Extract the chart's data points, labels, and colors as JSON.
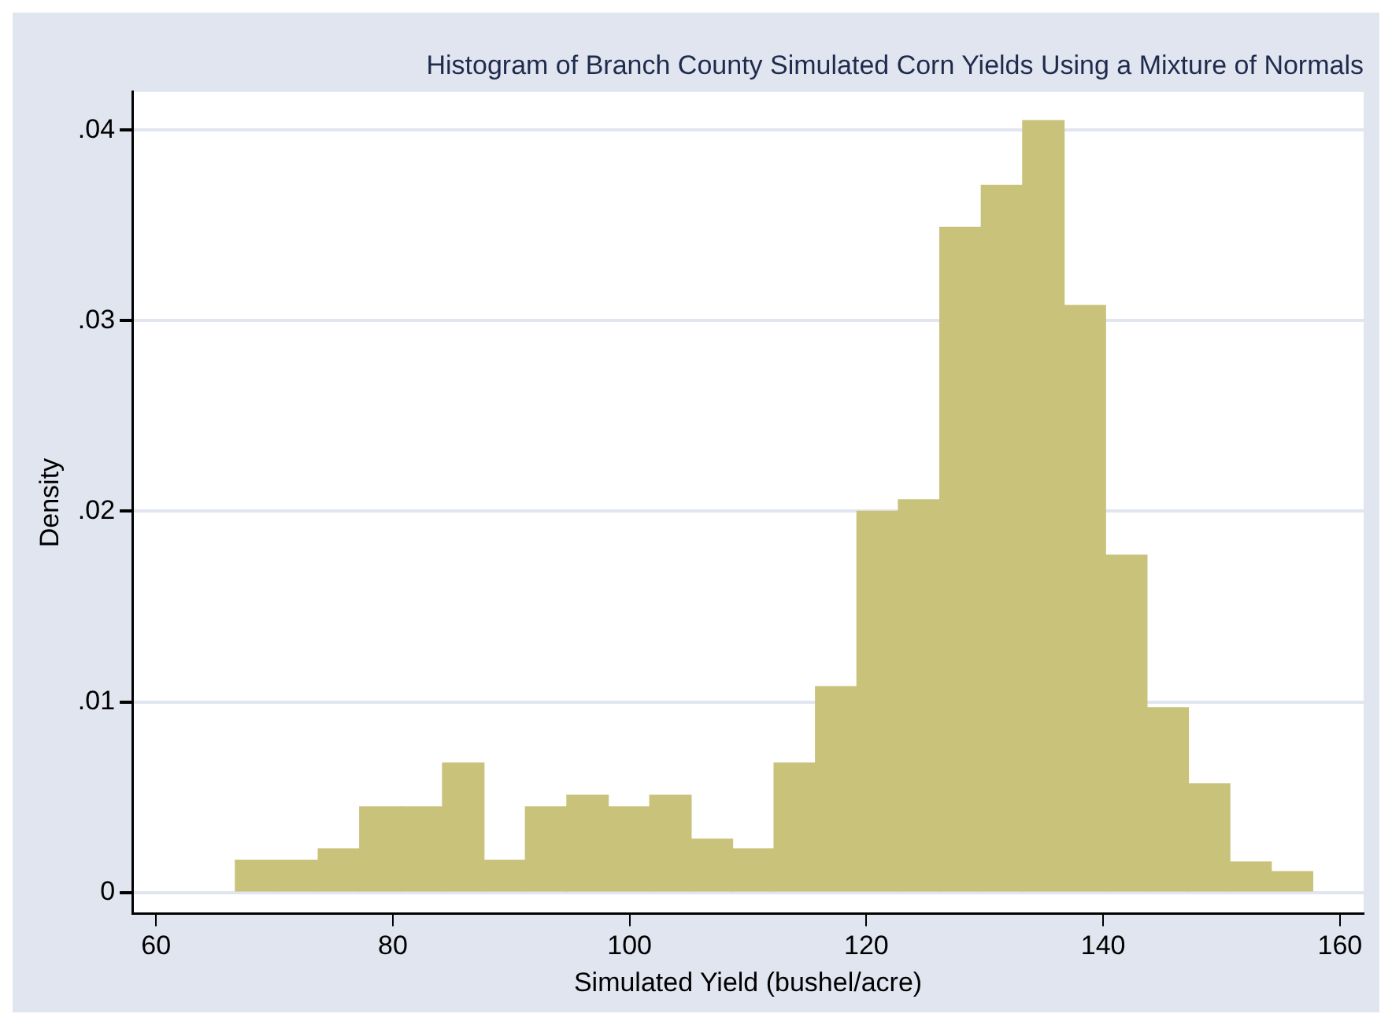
{
  "chart_data": {
    "type": "histogram",
    "title": "Histogram of Branch County Simulated Corn Yields Using a Mixture of Normals",
    "xlabel": "Simulated Yield (bushel/acre)",
    "ylabel": "Density",
    "bins": [
      66.7,
      70.2,
      73.7,
      77.2,
      80.7,
      84.2,
      87.7,
      91.2,
      94.7,
      98.2,
      101.7,
      105.2,
      108.7,
      112.2,
      115.7,
      119.2,
      122.7,
      126.2,
      129.7,
      133.2,
      136.7,
      140.2,
      143.7,
      147.2,
      150.7,
      154.2,
      157.7
    ],
    "values": [
      0.0017,
      0.0017,
      0.0023,
      0.0045,
      0.0045,
      0.0068,
      0.0017,
      0.0045,
      0.0051,
      0.0045,
      0.0051,
      0.0028,
      0.0023,
      0.0068,
      0.0108,
      0.02,
      0.0206,
      0.0349,
      0.0371,
      0.0405,
      0.0308,
      0.0177,
      0.0097,
      0.0057,
      0.0016,
      0.0011
    ],
    "color": "#c9c27b",
    "xlim": [
      58,
      162
    ],
    "xticks": [
      60,
      80,
      100,
      120,
      140,
      160
    ],
    "ylim": [
      -0.0011,
      0.042
    ],
    "yticks": [
      {
        "value": 0,
        "label": "0"
      },
      {
        "value": 0.01,
        "label": ".01"
      },
      {
        "value": 0.02,
        "label": ".02"
      },
      {
        "value": 0.03,
        "label": ".03"
      },
      {
        "value": 0.04,
        "label": ".04"
      }
    ],
    "grid": "y",
    "legend": false
  }
}
